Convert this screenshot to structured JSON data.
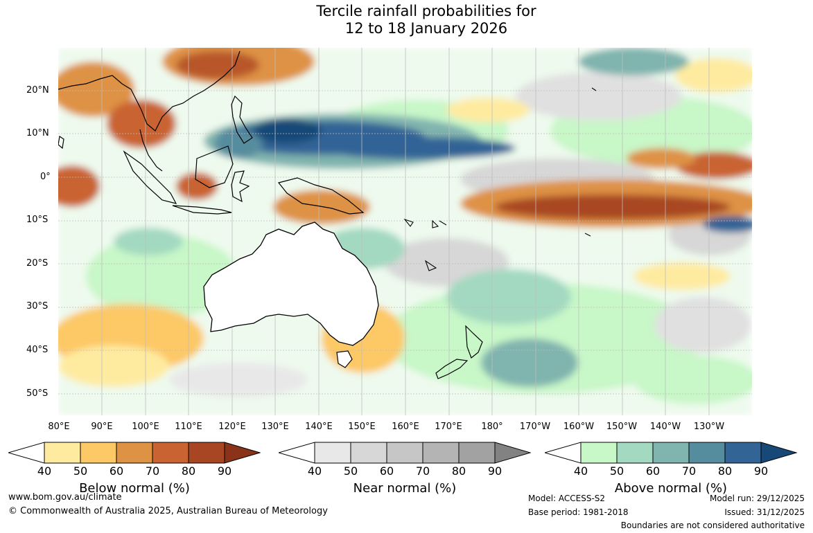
{
  "title": {
    "line1": "Tercile rainfall probabilities for",
    "line2": "12 to 18 January 2026"
  },
  "latitude_labels": [
    "20°N",
    "10°N",
    "0°",
    "10°S",
    "20°S",
    "30°S",
    "40°S",
    "50°S"
  ],
  "longitude_labels": [
    "80°E",
    "90°E",
    "100°E",
    "110°E",
    "120°E",
    "130°E",
    "140°E",
    "150°E",
    "160°E",
    "170°E",
    "180°",
    "170°W",
    "160°W",
    "150°W",
    "140°W",
    "130°W"
  ],
  "colorbars": {
    "below": {
      "title": "Below normal (%)",
      "ticks": [
        "40",
        "50",
        "60",
        "70",
        "80",
        "90"
      ],
      "colors": [
        "#ffffff",
        "#feeba0",
        "#fdc866",
        "#de9244",
        "#c96332",
        "#a84623",
        "#8a3318"
      ]
    },
    "near": {
      "title": "Near normal (%)",
      "ticks": [
        "40",
        "50",
        "60",
        "70",
        "80",
        "90"
      ],
      "colors": [
        "#ffffff",
        "#e8e8e8",
        "#d7d7d7",
        "#c6c6c6",
        "#b4b4b4",
        "#a2a2a2",
        "#828282"
      ]
    },
    "above": {
      "title": "Above normal (%)",
      "ticks": [
        "40",
        "50",
        "60",
        "70",
        "80",
        "90"
      ],
      "colors": [
        "#ffffff",
        "#c8f7c8",
        "#a3d9c0",
        "#80b4ae",
        "#568d9e",
        "#336496",
        "#164878"
      ]
    }
  },
  "footer": {
    "website": "www.bom.gov.au/climate",
    "copyright": "© Commonwealth of Australia 2025, Australian Bureau of Meteorology",
    "model": "Model: ACCESS-S2",
    "base_period": "Base period: 1981-2018",
    "model_run": "Model run: 29/12/2025",
    "issued": "Issued: 31/12/2025",
    "disclaimer": "Boundaries are not considered authoritative"
  }
}
